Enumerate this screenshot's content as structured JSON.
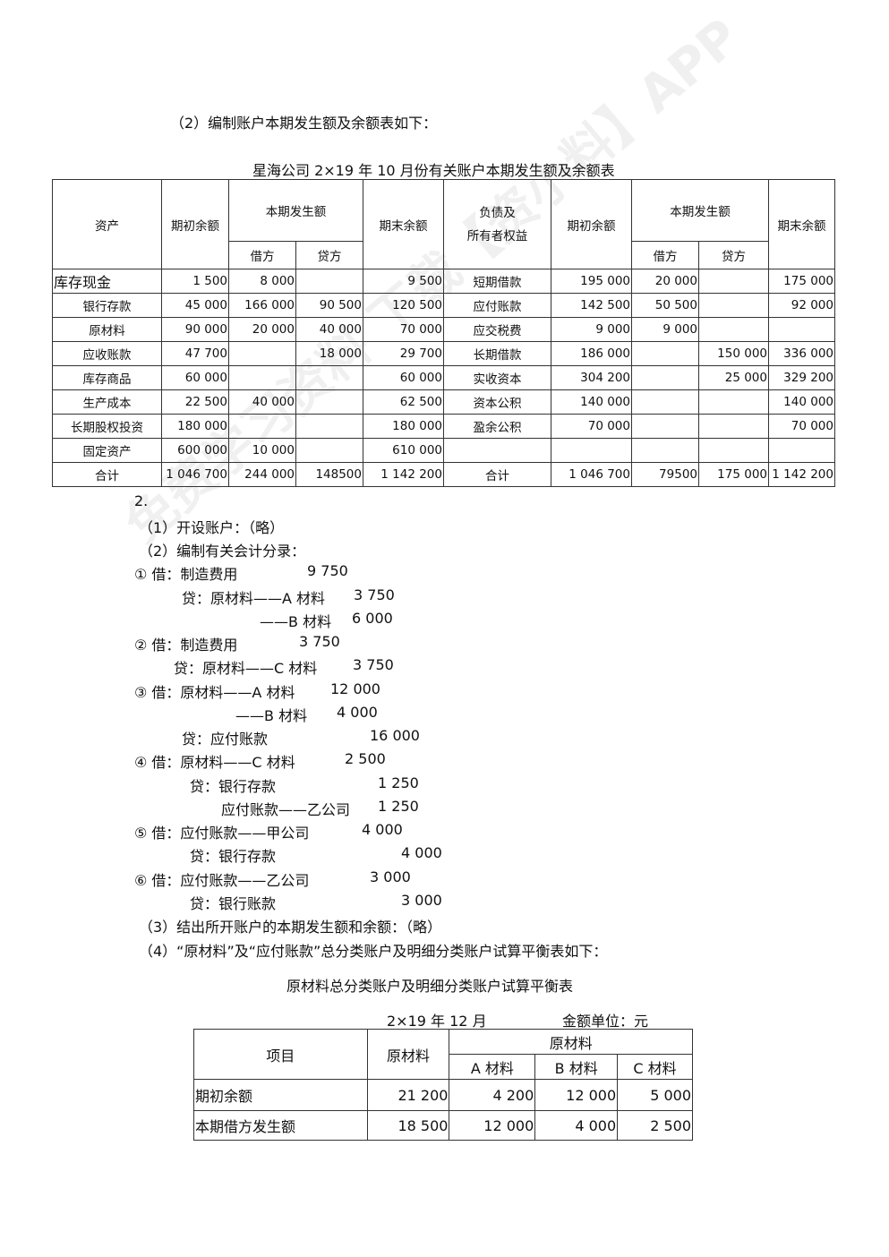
{
  "intro": "（2）编制账户本期发生额及余额表如下：",
  "table1": {
    "title": "星海公司 2×19 年 10 月份有关账户本期发生额及余额表",
    "headers": {
      "asset": "资产",
      "opening": "期初余额",
      "period": "本期发生额",
      "debit": "借方",
      "credit": "贷方",
      "closing": "期末余额",
      "liab_line1": "负债及",
      "liab_line2": "所有者权益"
    },
    "rows": [
      {
        "a": "库存现金",
        "ao": "1 500",
        "ad": "8 000",
        "ac": "",
        "ae": "9 500",
        "l": "短期借款",
        "lo": "195 000",
        "ld": "20 000",
        "lc": "",
        "le": "175 000"
      },
      {
        "a": "银行存款",
        "ao": "45 000",
        "ad": "166 000",
        "ac": "90 500",
        "ae": "120 500",
        "l": "应付账款",
        "lo": "142 500",
        "ld": "50 500",
        "lc": "",
        "le": "92 000"
      },
      {
        "a": "原材料",
        "ao": "90 000",
        "ad": "20 000",
        "ac": "40 000",
        "ae": "70 000",
        "l": "应交税费",
        "lo": "9 000",
        "ld": "9 000",
        "lc": "",
        "le": ""
      },
      {
        "a": "应收账款",
        "ao": "47 700",
        "ad": "",
        "ac": "18 000",
        "ae": "29 700",
        "l": "长期借款",
        "lo": "186 000",
        "ld": "",
        "lc": "150 000",
        "le": "336 000"
      },
      {
        "a": "库存商品",
        "ao": "60 000",
        "ad": "",
        "ac": "",
        "ae": "60 000",
        "l": "实收资本",
        "lo": "304 200",
        "ld": "",
        "lc": "25 000",
        "le": "329 200"
      },
      {
        "a": "生产成本",
        "ao": "22 500",
        "ad": "40 000",
        "ac": "",
        "ae": "62 500",
        "l": "资本公积",
        "lo": "140 000",
        "ld": "",
        "lc": "",
        "le": "140 000"
      },
      {
        "a": "长期股权投资",
        "ao": "180 000",
        "ad": "",
        "ac": "",
        "ae": "180 000",
        "l": "盈余公积",
        "lo": "70 000",
        "ld": "",
        "lc": "",
        "le": "70 000"
      },
      {
        "a": "固定资产",
        "ao": "600 000",
        "ad": "10 000",
        "ac": "",
        "ae": "610 000",
        "l": "",
        "lo": "",
        "ld": "",
        "lc": "",
        "le": ""
      },
      {
        "a": "合计",
        "ao": "1 046 700",
        "ad": "244 000",
        "ac": "148500",
        "ae": "1 142 200",
        "l": "合计",
        "lo": "1 046 700",
        "ld": "79500",
        "lc": "175 000",
        "le": "1 142 200"
      }
    ]
  },
  "lines": [
    {
      "text": "2.",
      "amount": ""
    },
    {
      "text": "（1）开设账户：（略）",
      "amount": ""
    },
    {
      "text": "（2）编制有关会计分录：",
      "amount": ""
    },
    {
      "text": "① 借：制造费用",
      "amount": "9 750"
    },
    {
      "text": "贷：原材料——A 材料",
      "amount": "3 750"
    },
    {
      "text": "——B 材料",
      "amount": "6 000"
    },
    {
      "text": "② 借：制造费用",
      "amount": "3 750"
    },
    {
      "text": "贷：原材料——C 材料",
      "amount": "3 750"
    },
    {
      "text": "③ 借：原材料——A 材料",
      "amount": "12 000"
    },
    {
      "text": "——B 材料",
      "amount": "4 000"
    },
    {
      "text": "贷：应付账款",
      "amount": "16 000"
    },
    {
      "text": "④ 借：原材料——C 材料",
      "amount": "2 500"
    },
    {
      "text": "贷：银行存款",
      "amount": "1 250"
    },
    {
      "text": "应付账款——乙公司",
      "amount": "1 250"
    },
    {
      "text": "⑤ 借：应付账款——甲公司",
      "amount": "4 000"
    },
    {
      "text": "贷：银行存款",
      "amount": "4 000"
    },
    {
      "text": "⑥ 借：应付账款——乙公司",
      "amount": "3 000"
    },
    {
      "text": "贷：银行账款",
      "amount": "3 000"
    },
    {
      "text": "（3）结出所开账户的本期发生额和余额：（略）",
      "amount": ""
    },
    {
      "text": "（4）“原材料”及“应付账款”总分类账户及明细分类账户试算平衡表如下：",
      "amount": ""
    }
  ],
  "table2": {
    "title": "原材料总分类账户及明细分类账户试算平衡表",
    "date": "2×19 年 12 月",
    "unit": "金额单位：元",
    "headers": {
      "item": "项目",
      "total": "原材料",
      "group": "原材料",
      "a": "A 材料",
      "b": "B 材料",
      "c": "C 材料"
    },
    "rows": [
      {
        "item": "期初余额",
        "total": "21 200",
        "a": "4 200",
        "b": "12 000",
        "c": "5 000"
      },
      {
        "item": "本期借方发生额",
        "total": "18 500",
        "a": "12 000",
        "b": "4 000",
        "c": "2 500"
      }
    ]
  },
  "watermark": "免费学习资料 下载【资小料】APP"
}
